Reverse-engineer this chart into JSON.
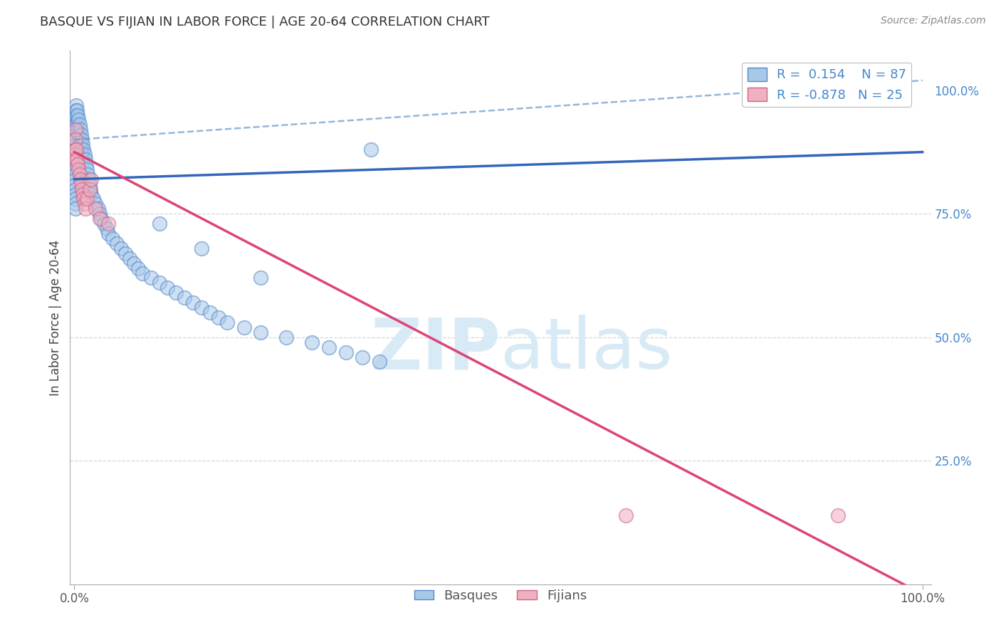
{
  "title": "BASQUE VS FIJIAN IN LABOR FORCE | AGE 20-64 CORRELATION CHART",
  "source": "Source: ZipAtlas.com",
  "ylabel": "In Labor Force | Age 20-64",
  "legend_basque": "Basques",
  "legend_fijian": "Fijians",
  "r_basque": 0.154,
  "n_basque": 87,
  "r_fijian": -0.878,
  "n_fijian": 25,
  "blue_scatter_color": "#a8c8e8",
  "blue_scatter_edge": "#5588cc",
  "pink_scatter_color": "#f0b0c0",
  "pink_scatter_edge": "#cc6688",
  "blue_line_color": "#3366bb",
  "pink_line_color": "#dd4477",
  "dash_line_color": "#6699cc",
  "watermark_color": "#d8eaf5",
  "title_color": "#333333",
  "source_color": "#888888",
  "tick_color": "#4488cc",
  "grid_color": "#cccccc",
  "y_min": 0.0,
  "y_max": 1.08,
  "x_min": -0.005,
  "x_max": 1.01,
  "blue_line_x0": 0.0,
  "blue_line_y0": 0.82,
  "blue_line_x1": 1.0,
  "blue_line_y1": 0.875,
  "dash_line_x0": 0.0,
  "dash_line_y0": 0.9,
  "dash_line_x1": 1.0,
  "dash_line_y1": 1.02,
  "pink_line_x0": 0.0,
  "pink_line_y0": 0.875,
  "pink_line_x1": 1.0,
  "pink_line_y1": -0.02,
  "basque_x": [
    0.001,
    0.001,
    0.001,
    0.001,
    0.001,
    0.001,
    0.001,
    0.001,
    0.001,
    0.001,
    0.001,
    0.001,
    0.001,
    0.001,
    0.001,
    0.001,
    0.001,
    0.001,
    0.001,
    0.001,
    0.002,
    0.002,
    0.002,
    0.003,
    0.003,
    0.004,
    0.004,
    0.005,
    0.005,
    0.006,
    0.006,
    0.007,
    0.007,
    0.008,
    0.008,
    0.009,
    0.009,
    0.01,
    0.01,
    0.011,
    0.012,
    0.013,
    0.014,
    0.015,
    0.016,
    0.017,
    0.018,
    0.019,
    0.02,
    0.022,
    0.025,
    0.028,
    0.03,
    0.032,
    0.035,
    0.038,
    0.04,
    0.045,
    0.05,
    0.055,
    0.06,
    0.065,
    0.07,
    0.075,
    0.08,
    0.09,
    0.1,
    0.11,
    0.12,
    0.13,
    0.14,
    0.15,
    0.16,
    0.17,
    0.18,
    0.2,
    0.22,
    0.25,
    0.28,
    0.3,
    0.32,
    0.34,
    0.36,
    0.22,
    0.15,
    0.1,
    0.35
  ],
  "basque_y": [
    0.95,
    0.94,
    0.93,
    0.92,
    0.91,
    0.9,
    0.89,
    0.88,
    0.87,
    0.86,
    0.85,
    0.84,
    0.83,
    0.82,
    0.81,
    0.8,
    0.79,
    0.78,
    0.77,
    0.76,
    0.97,
    0.96,
    0.95,
    0.96,
    0.93,
    0.95,
    0.92,
    0.94,
    0.91,
    0.93,
    0.9,
    0.92,
    0.89,
    0.91,
    0.88,
    0.9,
    0.87,
    0.89,
    0.86,
    0.88,
    0.87,
    0.86,
    0.85,
    0.84,
    0.83,
    0.82,
    0.81,
    0.8,
    0.79,
    0.78,
    0.77,
    0.76,
    0.75,
    0.74,
    0.73,
    0.72,
    0.71,
    0.7,
    0.69,
    0.68,
    0.67,
    0.66,
    0.65,
    0.64,
    0.63,
    0.62,
    0.61,
    0.6,
    0.59,
    0.58,
    0.57,
    0.56,
    0.55,
    0.54,
    0.53,
    0.52,
    0.51,
    0.5,
    0.49,
    0.48,
    0.47,
    0.46,
    0.45,
    0.62,
    0.68,
    0.73,
    0.88
  ],
  "fijian_x": [
    0.001,
    0.001,
    0.001,
    0.001,
    0.001,
    0.002,
    0.003,
    0.004,
    0.005,
    0.006,
    0.007,
    0.008,
    0.009,
    0.01,
    0.011,
    0.012,
    0.013,
    0.015,
    0.018,
    0.02,
    0.025,
    0.03,
    0.04,
    0.65,
    0.9
  ],
  "fijian_y": [
    0.92,
    0.9,
    0.88,
    0.87,
    0.86,
    0.88,
    0.86,
    0.85,
    0.84,
    0.83,
    0.82,
    0.81,
    0.8,
    0.79,
    0.78,
    0.77,
    0.76,
    0.78,
    0.8,
    0.82,
    0.76,
    0.74,
    0.73,
    0.14,
    0.14
  ]
}
